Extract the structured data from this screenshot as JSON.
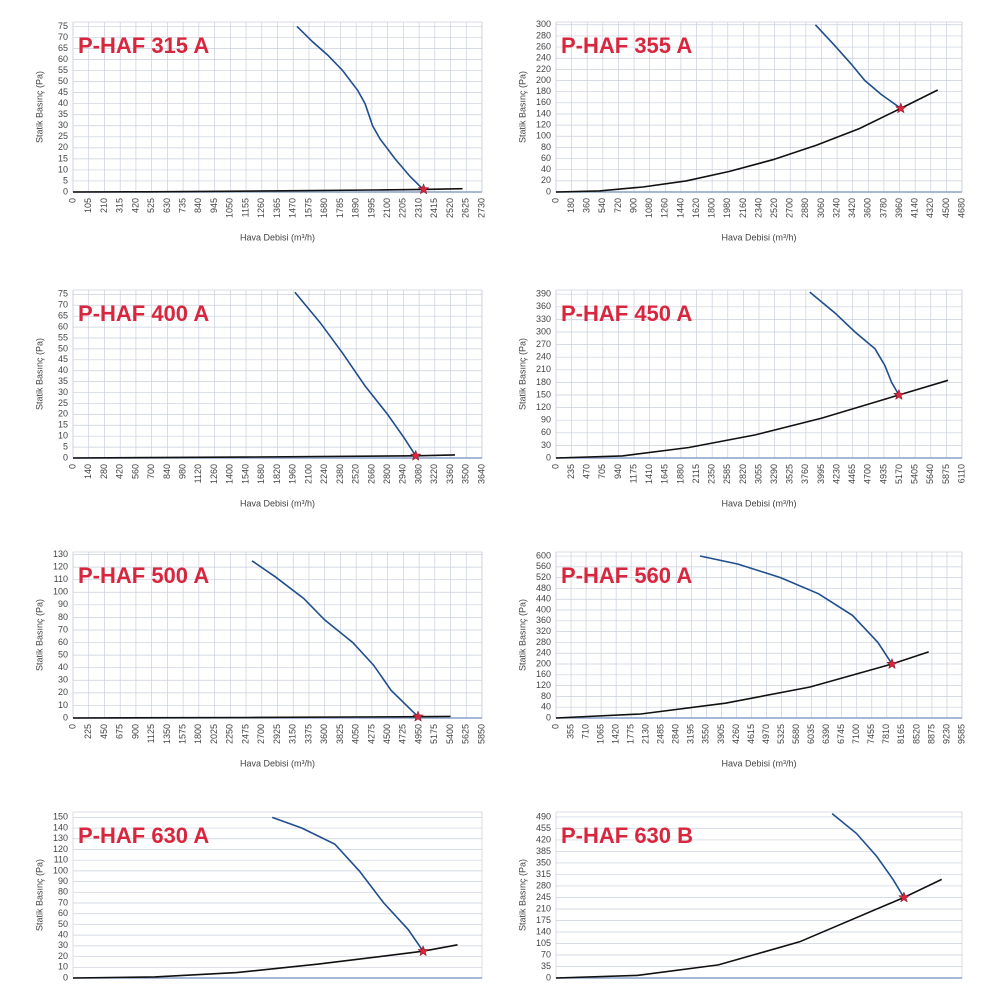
{
  "chart_data": [
    {
      "type": "line",
      "title": "P-HAF 315 A",
      "xlabel": "Hava Debisi (m³/h)",
      "ylabel": "Statik Basınç (Pa)",
      "xlim": [
        0,
        2730
      ],
      "ylim": [
        0,
        77
      ],
      "xticks": [
        0,
        105,
        210,
        315,
        420,
        525,
        630,
        735,
        840,
        945,
        1050,
        1155,
        1260,
        1365,
        1470,
        1575,
        1680,
        1785,
        1890,
        1995,
        2100,
        2205,
        2310,
        2415,
        2520,
        2625,
        2730
      ],
      "yticks": [
        0,
        5,
        10,
        15,
        20,
        25,
        30,
        35,
        40,
        45,
        50,
        55,
        60,
        65,
        70,
        75
      ],
      "grid": true,
      "series": [
        {
          "color": "#1f4e8c",
          "x": [
            1495,
            1600,
            1700,
            1800,
            1900,
            1950,
            2000,
            2050,
            2150,
            2250,
            2340
          ],
          "values": [
            75,
            68,
            62,
            55,
            46,
            40,
            30,
            24,
            15,
            7,
            1
          ]
        },
        {
          "color": "#111111",
          "x": [
            0,
            500,
            1000,
            1500,
            2000,
            2340,
            2600
          ],
          "values": [
            0,
            0.1,
            0.3,
            0.6,
            0.9,
            1.2,
            1.5
          ]
        }
      ],
      "point": {
        "x": 2340,
        "y": 1.2,
        "color": "#d7263d"
      }
    },
    {
      "type": "line",
      "title": "P-HAF 355 A",
      "xlabel": "Hava Debisi (m³/h)",
      "ylabel": "Statik Basınç (Pa)",
      "xlim": [
        0,
        4680
      ],
      "ylim": [
        0,
        305
      ],
      "xticks": [
        0,
        180,
        360,
        540,
        720,
        900,
        1080,
        1260,
        1440,
        1620,
        1800,
        1980,
        2160,
        2340,
        2520,
        2700,
        2880,
        3060,
        3240,
        3420,
        3600,
        3780,
        3960,
        4140,
        4320,
        4500,
        4680
      ],
      "yticks": [
        0,
        20,
        40,
        60,
        80,
        100,
        120,
        140,
        160,
        180,
        200,
        220,
        240,
        260,
        280,
        300
      ],
      "grid": true,
      "series": [
        {
          "color": "#1f4e8c",
          "x": [
            2990,
            3200,
            3400,
            3560,
            3750,
            3975
          ],
          "values": [
            300,
            265,
            230,
            200,
            175,
            150
          ]
        },
        {
          "color": "#111111",
          "x": [
            0,
            500,
            1000,
            1500,
            2000,
            2500,
            3000,
            3500,
            3975,
            4400
          ],
          "values": [
            0,
            2,
            9,
            20,
            37,
            58,
            84,
            114,
            150,
            183
          ]
        }
      ],
      "point": {
        "x": 3975,
        "y": 150,
        "color": "#d7263d"
      }
    },
    {
      "type": "line",
      "title": "P-HAF 400 A",
      "xlabel": "Hava Debisi (m³/h)",
      "ylabel": "Statik Basınç (Pa)",
      "xlim": [
        0,
        3640
      ],
      "ylim": [
        0,
        77
      ],
      "xticks": [
        0,
        140,
        280,
        420,
        560,
        700,
        840,
        980,
        1120,
        1260,
        1400,
        1540,
        1680,
        1820,
        1960,
        2100,
        2240,
        2380,
        2520,
        2660,
        2800,
        2940,
        3080,
        3220,
        3360,
        3500,
        3640
      ],
      "yticks": [
        0,
        5,
        10,
        15,
        20,
        25,
        30,
        35,
        40,
        45,
        50,
        55,
        60,
        65,
        70,
        75
      ],
      "grid": true,
      "series": [
        {
          "color": "#1f4e8c",
          "x": [
            1975,
            2200,
            2400,
            2600,
            2800,
            2950,
            3050
          ],
          "values": [
            76,
            62,
            48,
            33,
            20,
            9,
            1
          ]
        },
        {
          "color": "#111111",
          "x": [
            0,
            1500,
            3050,
            3400
          ],
          "values": [
            0,
            0.4,
            1,
            1.4
          ]
        }
      ],
      "point": {
        "x": 3050,
        "y": 1,
        "color": "#d7263d"
      }
    },
    {
      "type": "line",
      "title": "P-HAF 450 A",
      "xlabel": "Hava Debisi (m³/h)",
      "ylabel": "Statik Basınç (Pa)",
      "xlim": [
        0,
        6110
      ],
      "ylim": [
        0,
        400
      ],
      "xticks": [
        0,
        235,
        470,
        705,
        940,
        1175,
        1410,
        1645,
        1880,
        2115,
        2350,
        2585,
        2820,
        3055,
        3290,
        3525,
        3760,
        3995,
        4230,
        4465,
        4700,
        4935,
        5170,
        5405,
        5640,
        5875,
        6110
      ],
      "yticks": [
        0,
        30,
        60,
        90,
        120,
        150,
        180,
        210,
        240,
        270,
        300,
        330,
        360,
        390
      ],
      "grid": true,
      "series": [
        {
          "color": "#1f4e8c",
          "x": [
            3820,
            4200,
            4500,
            4800,
            4950,
            5050,
            5160
          ],
          "values": [
            395,
            345,
            300,
            260,
            220,
            180,
            150
          ]
        },
        {
          "color": "#111111",
          "x": [
            0,
            1000,
            2000,
            3000,
            4000,
            5160,
            5900
          ],
          "values": [
            0,
            5,
            25,
            55,
            95,
            150,
            185
          ]
        }
      ],
      "point": {
        "x": 5160,
        "y": 150,
        "color": "#d7263d"
      }
    },
    {
      "type": "line",
      "title": "P-HAF 500 A",
      "xlabel": "Hava Debisi (m³/h)",
      "ylabel": "Statik Basınç (Pa)",
      "xlim": [
        0,
        5850
      ],
      "ylim": [
        0,
        132
      ],
      "xticks": [
        0,
        225,
        450,
        675,
        900,
        1125,
        1350,
        1575,
        1800,
        2025,
        2250,
        2475,
        2700,
        2925,
        3150,
        3375,
        3600,
        3825,
        4050,
        4275,
        4500,
        4725,
        4950,
        5175,
        5400,
        5625,
        5850
      ],
      "yticks": [
        0,
        10,
        20,
        30,
        40,
        50,
        60,
        70,
        80,
        90,
        100,
        110,
        120,
        130
      ],
      "grid": true,
      "series": [
        {
          "color": "#1f4e8c",
          "x": [
            2560,
            2900,
            3300,
            3600,
            4000,
            4300,
            4550,
            4935
          ],
          "values": [
            125,
            112,
            95,
            78,
            60,
            42,
            22,
            1
          ]
        },
        {
          "color": "#111111",
          "x": [
            0,
            2500,
            4935,
            5400
          ],
          "values": [
            0,
            0.4,
            1,
            1.3
          ]
        }
      ],
      "point": {
        "x": 4935,
        "y": 1,
        "color": "#d7263d"
      }
    },
    {
      "type": "line",
      "title": "P-HAF 560 A",
      "xlabel": "Hava Debisi (m³/h)",
      "ylabel": "Statik Basınç (Pa)",
      "xlim": [
        0,
        9585
      ],
      "ylim": [
        0,
        615
      ],
      "xticks": [
        0,
        355,
        710,
        1065,
        1420,
        1775,
        2130,
        2485,
        2840,
        3195,
        3550,
        3905,
        4260,
        4615,
        4970,
        5325,
        5680,
        6035,
        6390,
        6745,
        7100,
        7455,
        7810,
        8165,
        8520,
        8875,
        9230,
        9585
      ],
      "yticks": [
        0,
        40,
        80,
        120,
        160,
        200,
        240,
        280,
        320,
        360,
        400,
        440,
        480,
        520,
        560,
        600
      ],
      "grid": true,
      "series": [
        {
          "color": "#1f4e8c",
          "x": [
            3400,
            4300,
            5300,
            6200,
            7000,
            7600,
            7932
          ],
          "values": [
            600,
            570,
            520,
            460,
            380,
            280,
            200
          ]
        },
        {
          "color": "#111111",
          "x": [
            0,
            2000,
            4000,
            6000,
            7932,
            8800
          ],
          "values": [
            0,
            15,
            55,
            115,
            200,
            245
          ]
        }
      ],
      "point": {
        "x": 7932,
        "y": 200,
        "color": "#d7263d"
      }
    },
    {
      "type": "line",
      "title": "P-HAF 630 A",
      "ylabel": "Statik Basınç (Pa)",
      "xlim": [
        0,
        1000
      ],
      "ylim": [
        0,
        155
      ],
      "yticks": [
        0,
        10,
        20,
        30,
        40,
        50,
        60,
        70,
        80,
        90,
        100,
        110,
        120,
        130,
        140,
        150
      ],
      "grid": true,
      "series": [
        {
          "color": "#1f4e8c",
          "x": [
            487,
            560,
            640,
            700,
            760,
            820,
            856
          ],
          "values": [
            150,
            140,
            125,
            100,
            70,
            45,
            25
          ]
        },
        {
          "color": "#111111",
          "x": [
            0,
            200,
            400,
            600,
            856,
            940
          ],
          "values": [
            0,
            1,
            5,
            13,
            25,
            31
          ]
        }
      ],
      "point": {
        "x": 856,
        "y": 25,
        "color": "#d7263d"
      }
    },
    {
      "type": "line",
      "title": "P-HAF 630 B",
      "ylabel": "Statik Basınç (Pa)",
      "xlim": [
        0,
        1000
      ],
      "ylim": [
        0,
        505
      ],
      "yticks": [
        0,
        35,
        70,
        105,
        140,
        175,
        210,
        245,
        280,
        315,
        350,
        385,
        420,
        455,
        490
      ],
      "grid": true,
      "series": [
        {
          "color": "#1f4e8c",
          "x": [
            680,
            740,
            790,
            830,
            857
          ],
          "values": [
            500,
            440,
            370,
            300,
            245
          ]
        },
        {
          "color": "#111111",
          "x": [
            0,
            200,
            400,
            600,
            857,
            950
          ],
          "values": [
            0,
            8,
            40,
            110,
            245,
            300
          ]
        }
      ],
      "point": {
        "x": 857,
        "y": 245,
        "color": "#d7263d"
      }
    }
  ]
}
